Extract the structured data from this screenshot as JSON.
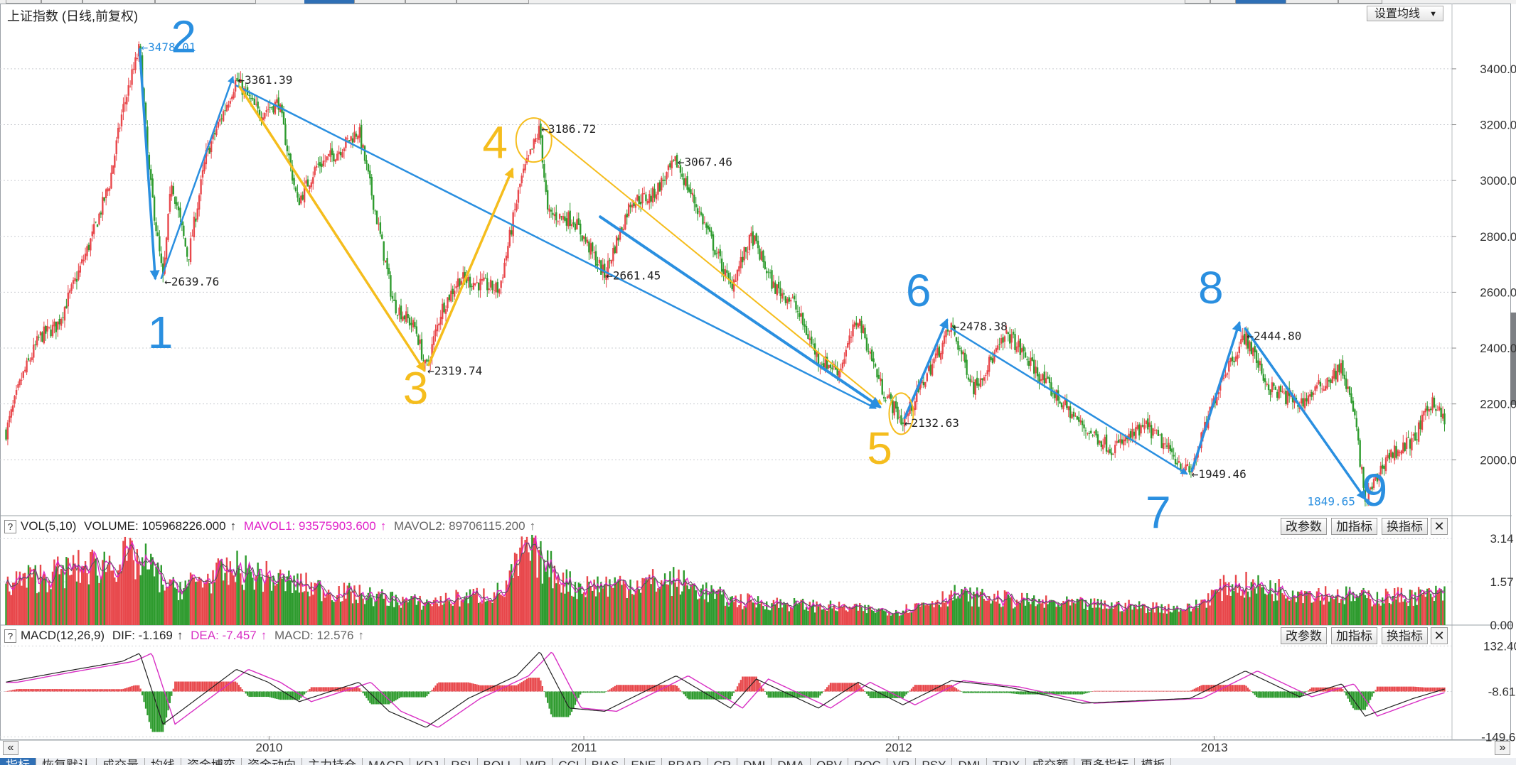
{
  "chart_title": "上证指数 (日线,前复权)",
  "ma_button": "设置均线",
  "volume_panel": {
    "help": "?",
    "name": "VOL(5,10)",
    "volume": "VOLUME: 105968226.000",
    "mavol1": "MAVOL1: 93575903.600",
    "mavol2": "MAVOL2: 89706115.200",
    "arrow": "↑",
    "ticks": [
      "3.14",
      "1.57",
      "0.00"
    ],
    "buttons": [
      "改参数",
      "加指标",
      "换指标"
    ],
    "close": "✕"
  },
  "macd_panel": {
    "help": "?",
    "name": "MACD(12,26,9)",
    "dif": "DIF: -1.169",
    "dea": "DEA: -7.457",
    "macd": "MACD: 12.576",
    "arrow": "↑",
    "ticks": [
      "132.40",
      "-8.61",
      "-149.61"
    ],
    "buttons": [
      "改参数",
      "加指标",
      "换指标"
    ],
    "close": "✕"
  },
  "x_axis_labels": [
    "2010",
    "2011",
    "2012",
    "2013"
  ],
  "scroll_left": "«",
  "scroll_right": "»",
  "bottom_tabs": [
    "指标",
    "恢复默认",
    "成交量",
    "均线",
    "资金博弈",
    "资金动向",
    "主力持仓",
    "MACD",
    "KDJ",
    "RSI",
    "BOLL",
    "WR",
    "CCI",
    "BIAS",
    "ENE",
    "BRAR",
    "CR",
    "DMI",
    "DMA",
    "OBV",
    "ROC",
    "VR",
    "PSY",
    "DMI",
    "TRIX",
    "成交额",
    "更多指标",
    "模板"
  ],
  "colors": {
    "up": "#e8474b",
    "down": "#2e9b2e",
    "blue_annot": "#2a8fe0",
    "yellow_annot": "#f5bd1d",
    "mavol1": "#e020c8",
    "dea": "#d82fc4"
  },
  "chart_data": {
    "type": "line",
    "title": "上证指数 (日线,前复权)",
    "y_ticks": [
      3400,
      3200,
      3000,
      2800,
      2600,
      2400,
      2200,
      2000
    ],
    "y_tick_labels": [
      "3400.00",
      "3200.00",
      "3000.00",
      "2800.00",
      "2600.00",
      "2400.00",
      "2200.00",
      "2000.00"
    ],
    "ylim": [
      1810,
      3560
    ],
    "x_years": [
      "2010",
      "2011",
      "2012",
      "2013"
    ],
    "price_path": [
      {
        "d": "2009-03-02",
        "v": 2100
      },
      {
        "d": "2009-03-20",
        "v": 2290
      },
      {
        "d": "2009-04-10",
        "v": 2440
      },
      {
        "d": "2009-04-30",
        "v": 2480
      },
      {
        "d": "2009-05-20",
        "v": 2630
      },
      {
        "d": "2009-06-10",
        "v": 2800
      },
      {
        "d": "2009-06-30",
        "v": 2990
      },
      {
        "d": "2009-07-15",
        "v": 3250
      },
      {
        "d": "2009-08-04",
        "v": 3478.01
      },
      {
        "d": "2009-08-14",
        "v": 3050
      },
      {
        "d": "2009-08-31",
        "v": 2639.76
      },
      {
        "d": "2009-09-10",
        "v": 3000
      },
      {
        "d": "2009-09-29",
        "v": 2720
      },
      {
        "d": "2009-10-20",
        "v": 3090
      },
      {
        "d": "2009-11-24",
        "v": 3361.39
      },
      {
        "d": "2009-12-20",
        "v": 3240
      },
      {
        "d": "2010-01-12",
        "v": 3280
      },
      {
        "d": "2010-02-03",
        "v": 2920
      },
      {
        "d": "2010-02-25",
        "v": 3050
      },
      {
        "d": "2010-03-20",
        "v": 3100
      },
      {
        "d": "2010-04-15",
        "v": 3180
      },
      {
        "d": "2010-05-10",
        "v": 2800
      },
      {
        "d": "2010-05-25",
        "v": 2560
      },
      {
        "d": "2010-06-20",
        "v": 2470
      },
      {
        "d": "2010-07-02",
        "v": 2319.74
      },
      {
        "d": "2010-07-20",
        "v": 2540
      },
      {
        "d": "2010-08-10",
        "v": 2650
      },
      {
        "d": "2010-09-25",
        "v": 2610
      },
      {
        "d": "2010-10-20",
        "v": 3000
      },
      {
        "d": "2010-11-11",
        "v": 3186.72
      },
      {
        "d": "2010-11-20",
        "v": 2880
      },
      {
        "d": "2010-12-20",
        "v": 2860
      },
      {
        "d": "2011-01-25",
        "v": 2661.45
      },
      {
        "d": "2011-02-25",
        "v": 2930
      },
      {
        "d": "2011-03-20",
        "v": 2940
      },
      {
        "d": "2011-04-18",
        "v": 3067.46
      },
      {
        "d": "2011-05-20",
        "v": 2850
      },
      {
        "d": "2011-06-20",
        "v": 2620
      },
      {
        "d": "2011-07-15",
        "v": 2800
      },
      {
        "d": "2011-08-09",
        "v": 2620
      },
      {
        "d": "2011-08-31",
        "v": 2570
      },
      {
        "d": "2011-09-30",
        "v": 2360
      },
      {
        "d": "2011-10-24",
        "v": 2320
      },
      {
        "d": "2011-11-15",
        "v": 2510
      },
      {
        "d": "2011-12-12",
        "v": 2260
      },
      {
        "d": "2012-01-06",
        "v": 2132.63
      },
      {
        "d": "2012-02-10",
        "v": 2350
      },
      {
        "d": "2012-03-02",
        "v": 2478.38
      },
      {
        "d": "2012-03-28",
        "v": 2260
      },
      {
        "d": "2012-05-07",
        "v": 2450
      },
      {
        "d": "2012-06-20",
        "v": 2270
      },
      {
        "d": "2012-08-01",
        "v": 2120
      },
      {
        "d": "2012-09-05",
        "v": 2040
      },
      {
        "d": "2012-10-15",
        "v": 2120
      },
      {
        "d": "2012-12-04",
        "v": 1949.46
      },
      {
        "d": "2013-01-10",
        "v": 2300
      },
      {
        "d": "2013-02-06",
        "v": 2444.8
      },
      {
        "d": "2013-03-05",
        "v": 2260
      },
      {
        "d": "2013-04-10",
        "v": 2200
      },
      {
        "d": "2013-05-29",
        "v": 2330
      },
      {
        "d": "2013-06-13",
        "v": 2150
      },
      {
        "d": "2013-06-25",
        "v": 1849.65
      },
      {
        "d": "2013-07-20",
        "v": 2010
      },
      {
        "d": "2013-08-20",
        "v": 2070
      },
      {
        "d": "2013-09-12",
        "v": 2220
      },
      {
        "d": "2013-09-25",
        "v": 2130
      }
    ],
    "extreme_labels": [
      {
        "d": "2009-08-04",
        "v": 3478.01,
        "label": "3478.01",
        "color": "#2a8fe0"
      },
      {
        "d": "2009-08-31",
        "v": 2639.76,
        "label": "2639.76"
      },
      {
        "d": "2009-11-24",
        "v": 3361.39,
        "label": "3361.39"
      },
      {
        "d": "2010-07-02",
        "v": 2319.74,
        "label": "2319.74"
      },
      {
        "d": "2010-11-11",
        "v": 3186.72,
        "label": "3186.72"
      },
      {
        "d": "2011-01-25",
        "v": 2661.45,
        "label": "2661.45"
      },
      {
        "d": "2011-04-18",
        "v": 3067.46,
        "label": "3067.46"
      },
      {
        "d": "2012-01-06",
        "v": 2132.63,
        "label": "2132.63"
      },
      {
        "d": "2012-03-02",
        "v": 2478.38,
        "label": "2478.38"
      },
      {
        "d": "2012-12-04",
        "v": 1949.46,
        "label": "1949.46"
      },
      {
        "d": "2013-02-06",
        "v": 2444.8,
        "label": "2444.80"
      },
      {
        "d": "2013-06-25",
        "v": 1849.65,
        "label": "1849.65",
        "color": "#2a8fe0",
        "side": "left"
      }
    ],
    "wave_numbers": [
      {
        "text": "1",
        "d": "2009-08-28",
        "v": 2400,
        "color": "blue"
      },
      {
        "text": "2",
        "d": "2009-09-24",
        "v": 3460,
        "color": "blue"
      },
      {
        "text": "3",
        "d": "2010-06-20",
        "v": 2200,
        "color": "yellow"
      },
      {
        "text": "4",
        "d": "2010-09-20",
        "v": 3080,
        "color": "yellow"
      },
      {
        "text": "5",
        "d": "2011-12-10",
        "v": 1985,
        "color": "yellow"
      },
      {
        "text": "6",
        "d": "2012-01-24",
        "v": 2550,
        "color": "blue"
      },
      {
        "text": "7",
        "d": "2012-10-28",
        "v": 1755,
        "color": "blue"
      },
      {
        "text": "8",
        "d": "2012-12-28",
        "v": 2560,
        "color": "blue"
      },
      {
        "text": "9",
        "d": "2013-07-06",
        "v": 1835,
        "color": "blue"
      }
    ],
    "annotation_lines": [
      {
        "from": {
          "d": "2009-08-04",
          "v": 3470
        },
        "to": {
          "d": "2009-08-22",
          "v": 2650
        },
        "color": "blue",
        "width": 3.5
      },
      {
        "from": {
          "d": "2009-08-29",
          "v": 2650
        },
        "to": {
          "d": "2009-11-20",
          "v": 3370
        },
        "color": "blue",
        "width": 2.5
      },
      {
        "from": {
          "d": "2009-11-24",
          "v": 3340
        },
        "to": {
          "d": "2011-12-05",
          "v": 2185
        },
        "color": "blue",
        "width": 2.5
      },
      {
        "from": {
          "d": "2009-11-28",
          "v": 3335
        },
        "to": {
          "d": "2010-06-30",
          "v": 2320
        },
        "color": "yellow",
        "width": 3.5
      },
      {
        "from": {
          "d": "2010-07-05",
          "v": 2340
        },
        "to": {
          "d": "2010-10-10",
          "v": 3040
        },
        "color": "yellow",
        "width": 3.5
      },
      {
        "from": {
          "d": "2010-11-14",
          "v": 3190
        },
        "to": {
          "d": "2011-12-12",
          "v": 2200
        },
        "color": "yellow",
        "width": 2
      },
      {
        "from": {
          "d": "2011-01-20",
          "v": 2870
        },
        "to": {
          "d": "2011-12-10",
          "v": 2190
        },
        "color": "blue",
        "width": 4
      },
      {
        "from": {
          "d": "2012-01-08",
          "v": 2150
        },
        "to": {
          "d": "2012-02-26",
          "v": 2500
        },
        "color": "blue",
        "width": 3.5
      },
      {
        "from": {
          "d": "2012-03-02",
          "v": 2470
        },
        "to": {
          "d": "2012-11-30",
          "v": 1950
        },
        "color": "blue",
        "width": 2.5
      },
      {
        "from": {
          "d": "2012-12-06",
          "v": 1960
        },
        "to": {
          "d": "2013-01-30",
          "v": 2490
        },
        "color": "blue",
        "width": 3.5
      },
      {
        "from": {
          "d": "2013-02-06",
          "v": 2470
        },
        "to": {
          "d": "2013-06-25",
          "v": 1860
        },
        "color": "blue",
        "width": 3.5
      }
    ],
    "annotation_circles": [
      {
        "d": "2010-11-04",
        "v": 3145,
        "rx": 25,
        "ry": 31,
        "color": "yellow"
      },
      {
        "d": "2012-01-04",
        "v": 2165,
        "rx": 17,
        "ry": 29,
        "color": "yellow"
      }
    ],
    "volume_scale": {
      "ticks": [
        3.14,
        1.57,
        0.0
      ],
      "ylim": [
        0,
        3.3
      ]
    },
    "volume_profile": [
      {
        "d": "2009-03-01",
        "v": 1.5
      },
      {
        "d": "2009-07-20",
        "v": 2.4
      },
      {
        "d": "2009-08-12",
        "v": 2.2
      },
      {
        "d": "2009-09-10",
        "v": 1.3
      },
      {
        "d": "2009-11-25",
        "v": 2.0
      },
      {
        "d": "2010-01-15",
        "v": 1.6
      },
      {
        "d": "2010-03-20",
        "v": 1.2
      },
      {
        "d": "2010-06-30",
        "v": 0.8
      },
      {
        "d": "2010-09-30",
        "v": 1.2
      },
      {
        "d": "2010-10-25",
        "v": 2.7
      },
      {
        "d": "2010-11-12",
        "v": 2.3
      },
      {
        "d": "2010-12-20",
        "v": 1.4
      },
      {
        "d": "2011-04-18",
        "v": 1.6
      },
      {
        "d": "2011-06-20",
        "v": 0.9
      },
      {
        "d": "2011-12-31",
        "v": 0.5
      },
      {
        "d": "2012-03-05",
        "v": 1.1
      },
      {
        "d": "2012-06-20",
        "v": 0.8
      },
      {
        "d": "2012-12-04",
        "v": 0.6
      },
      {
        "d": "2013-01-20",
        "v": 1.5
      },
      {
        "d": "2013-03-15",
        "v": 1.3
      },
      {
        "d": "2013-06-25",
        "v": 1.0
      },
      {
        "d": "2013-09-25",
        "v": 1.1
      }
    ],
    "macd_scale": {
      "ticks": [
        132.4,
        -8.61,
        -149.61
      ],
      "ylim": [
        -155,
        140
      ]
    },
    "macd_dif_path": [
      {
        "d": "2009-03-01",
        "v": 20
      },
      {
        "d": "2009-05-01",
        "v": 50
      },
      {
        "d": "2009-07-15",
        "v": 85
      },
      {
        "d": "2009-08-04",
        "v": 110
      },
      {
        "d": "2009-08-31",
        "v": -110
      },
      {
        "d": "2009-09-25",
        "v": -60
      },
      {
        "d": "2009-11-24",
        "v": 60
      },
      {
        "d": "2009-12-31",
        "v": 20
      },
      {
        "d": "2010-02-05",
        "v": -40
      },
      {
        "d": "2010-04-15",
        "v": 20
      },
      {
        "d": "2010-05-20",
        "v": -70
      },
      {
        "d": "2010-07-02",
        "v": -120
      },
      {
        "d": "2010-08-20",
        "v": -30
      },
      {
        "d": "2010-10-15",
        "v": 40
      },
      {
        "d": "2010-11-11",
        "v": 115
      },
      {
        "d": "2010-12-15",
        "v": -60
      },
      {
        "d": "2011-01-25",
        "v": -70
      },
      {
        "d": "2011-04-18",
        "v": 40
      },
      {
        "d": "2011-06-20",
        "v": -60
      },
      {
        "d": "2011-07-20",
        "v": 30
      },
      {
        "d": "2011-09-30",
        "v": -60
      },
      {
        "d": "2011-11-15",
        "v": 20
      },
      {
        "d": "2012-01-06",
        "v": -50
      },
      {
        "d": "2012-03-02",
        "v": 25
      },
      {
        "d": "2012-05-07",
        "v": 5
      },
      {
        "d": "2012-08-01",
        "v": -45
      },
      {
        "d": "2012-12-04",
        "v": -30
      },
      {
        "d": "2013-02-06",
        "v": 55
      },
      {
        "d": "2013-04-10",
        "v": -25
      },
      {
        "d": "2013-05-29",
        "v": 15
      },
      {
        "d": "2013-06-25",
        "v": -85
      },
      {
        "d": "2013-08-20",
        "v": -30
      },
      {
        "d": "2013-09-25",
        "v": -1
      }
    ],
    "macd_dea_lag_days": 14
  }
}
